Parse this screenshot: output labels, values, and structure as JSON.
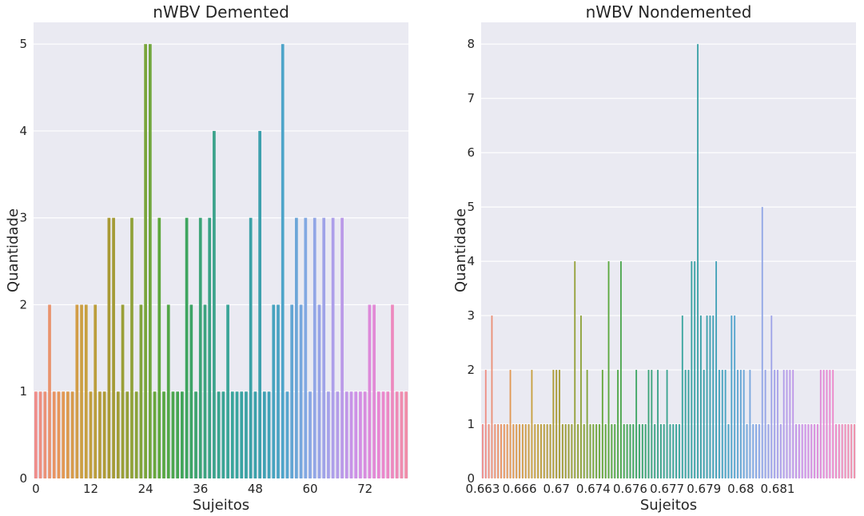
{
  "chart_data": [
    {
      "type": "bar",
      "title": "nWBV Demented",
      "xlabel": "Sujeitos",
      "ylabel": "Quantidade",
      "ylim": [
        0,
        5.25
      ],
      "yticks": [
        0,
        1,
        2,
        3,
        4,
        5
      ],
      "xtick_labels": [
        {
          "i": 0,
          "label": "0"
        },
        {
          "i": 12,
          "label": "12"
        },
        {
          "i": 24,
          "label": "24"
        },
        {
          "i": 36,
          "label": "36"
        },
        {
          "i": 48,
          "label": "48"
        },
        {
          "i": 60,
          "label": "60"
        },
        {
          "i": 72,
          "label": "72"
        }
      ],
      "grid": true,
      "values": [
        1,
        1,
        1,
        2,
        1,
        1,
        1,
        1,
        1,
        2,
        2,
        2,
        1,
        2,
        1,
        1,
        3,
        3,
        1,
        2,
        1,
        3,
        1,
        2,
        5,
        5,
        1,
        3,
        1,
        2,
        1,
        1,
        1,
        3,
        2,
        1,
        3,
        2,
        3,
        4,
        1,
        1,
        2,
        1,
        1,
        1,
        1,
        3,
        1,
        4,
        1,
        1,
        2,
        2,
        5,
        1,
        2,
        3,
        2,
        3,
        1,
        3,
        2,
        3,
        1,
        3,
        1,
        3,
        1,
        1,
        1,
        1,
        1,
        2,
        2,
        1,
        1,
        1,
        2,
        1,
        1,
        1
      ]
    },
    {
      "type": "bar",
      "title": "nWBV Nondemented",
      "xlabel": "Sujeitos",
      "ylabel": "Quantidade",
      "ylim": [
        0,
        8.4
      ],
      "yticks": [
        0,
        1,
        2,
        3,
        4,
        5,
        6,
        7,
        8
      ],
      "xtick_labels": [
        {
          "i": 0,
          "label": "0.663"
        },
        {
          "i": 12,
          "label": "0.666"
        },
        {
          "i": 24,
          "label": "0.67"
        },
        {
          "i": 36,
          "label": "0.674"
        },
        {
          "i": 48,
          "label": "0.676"
        },
        {
          "i": 60,
          "label": "0.677"
        },
        {
          "i": 72,
          "label": "0.679"
        },
        {
          "i": 84,
          "label": "0.68"
        },
        {
          "i": 96,
          "label": "0.681"
        }
      ],
      "grid": true,
      "values": [
        1,
        2,
        1,
        3,
        1,
        1,
        1,
        1,
        1,
        2,
        1,
        1,
        1,
        1,
        1,
        1,
        2,
        1,
        1,
        1,
        1,
        1,
        1,
        2,
        2,
        2,
        1,
        1,
        1,
        1,
        4,
        1,
        3,
        1,
        2,
        1,
        1,
        1,
        1,
        2,
        1,
        4,
        1,
        1,
        2,
        4,
        1,
        1,
        1,
        1,
        2,
        1,
        1,
        1,
        2,
        2,
        1,
        2,
        1,
        1,
        2,
        1,
        1,
        1,
        1,
        3,
        2,
        2,
        4,
        4,
        8,
        3,
        2,
        3,
        3,
        3,
        4,
        2,
        2,
        2,
        1,
        3,
        3,
        2,
        2,
        2,
        1,
        2,
        1,
        1,
        1,
        5,
        2,
        1,
        3,
        2,
        2,
        1,
        2,
        2,
        2,
        2,
        1,
        1,
        1,
        1,
        1,
        1,
        1,
        1,
        2,
        2,
        2,
        2,
        2,
        1,
        1,
        1,
        1,
        1,
        1,
        1
      ]
    }
  ]
}
